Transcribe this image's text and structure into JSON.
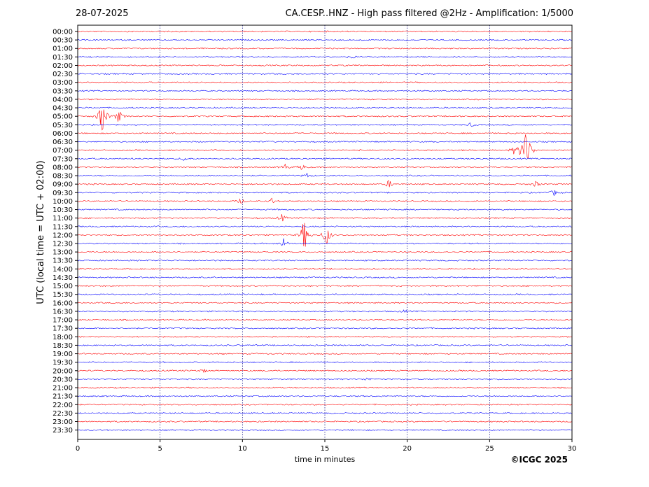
{
  "header": {
    "date": "28-07-2025",
    "title": "CA.CESP..HNZ - High pass filtered @2Hz - Amplification: 1/5000"
  },
  "footer": {
    "copyright": "©ICGC 2025"
  },
  "chart_data": {
    "type": "line",
    "chart_kind": "helicorder",
    "xlabel": "time in minutes",
    "ylabel": "UTC (local time = UTC + 02:00)",
    "xlim": [
      0,
      30
    ],
    "x_ticks": [
      0,
      5,
      10,
      15,
      20,
      25,
      30
    ],
    "grid_x": true,
    "row_labels": [
      "00:00",
      "00:30",
      "01:00",
      "01:30",
      "02:00",
      "02:30",
      "03:00",
      "03:30",
      "04:00",
      "04:30",
      "05:00",
      "05:30",
      "06:00",
      "06:30",
      "07:00",
      "07:30",
      "08:00",
      "08:30",
      "09:00",
      "09:30",
      "10:00",
      "10:30",
      "11:00",
      "11:30",
      "12:00",
      "12:30",
      "13:00",
      "13:30",
      "14:00",
      "14:30",
      "15:00",
      "15:30",
      "16:00",
      "16:30",
      "17:00",
      "17:30",
      "18:00",
      "18:30",
      "19:00",
      "19:30",
      "20:00",
      "20:30",
      "21:00",
      "21:30",
      "22:00",
      "22:30",
      "23:00",
      "23:30"
    ],
    "trace_colors": [
      "#ff0000",
      "#0000ff"
    ],
    "events": [
      {
        "row": "05:00",
        "minute": 1.5,
        "amplitude": 1.0
      },
      {
        "row": "05:00",
        "minute": 2.5,
        "amplitude": 0.35
      },
      {
        "row": "07:00",
        "minute": 27.1,
        "amplitude": 1.1
      },
      {
        "row": "07:00",
        "minute": 27.4,
        "amplitude": 0.55
      },
      {
        "row": "07:00",
        "minute": 26.5,
        "amplitude": 0.2
      },
      {
        "row": "07:30",
        "minute": 6.5,
        "amplitude": 0.12
      },
      {
        "row": "08:00",
        "minute": 12.6,
        "amplitude": 0.15
      },
      {
        "row": "08:00",
        "minute": 13.6,
        "amplitude": 0.15
      },
      {
        "row": "08:30",
        "minute": 13.9,
        "amplitude": 0.12
      },
      {
        "row": "09:00",
        "minute": 18.9,
        "amplitude": 0.2
      },
      {
        "row": "09:00",
        "minute": 27.8,
        "amplitude": 0.15
      },
      {
        "row": "09:30",
        "minute": 28.9,
        "amplitude": 0.15
      },
      {
        "row": "10:00",
        "minute": 9.9,
        "amplitude": 0.15
      },
      {
        "row": "10:00",
        "minute": 11.8,
        "amplitude": 0.15
      },
      {
        "row": "11:00",
        "minute": 12.4,
        "amplitude": 0.18
      },
      {
        "row": "12:00",
        "minute": 13.75,
        "amplitude": 0.9
      },
      {
        "row": "12:00",
        "minute": 15.1,
        "amplitude": 0.6
      },
      {
        "row": "12:30",
        "minute": 12.5,
        "amplitude": 0.25
      },
      {
        "row": "05:30",
        "minute": 23.9,
        "amplitude": 0.12
      },
      {
        "row": "01:30",
        "minute": 16.7,
        "amplitude": 0.08
      },
      {
        "row": "16:30",
        "minute": 19.8,
        "amplitude": 0.08
      },
      {
        "row": "20:00",
        "minute": 7.6,
        "amplitude": 0.08
      },
      {
        "row": "20:30",
        "minute": 17.6,
        "amplitude": 0.1
      }
    ]
  }
}
